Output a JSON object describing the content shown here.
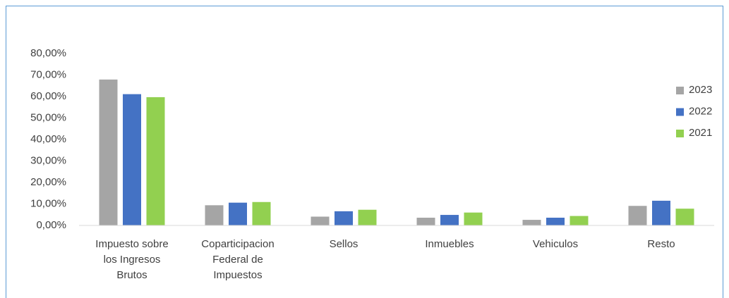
{
  "chart_data": {
    "type": "bar",
    "categories": [
      "Impuesto sobre los Ingresos Brutos",
      "Coparticipacion Federal de Impuestos",
      "Sellos",
      "Inmuebles",
      "Vehiculos",
      "Resto"
    ],
    "series": [
      {
        "name": "2023",
        "color": "#a5a5a5",
        "values": [
          67.9,
          9.4,
          4.1,
          3.6,
          2.6,
          9.1
        ]
      },
      {
        "name": "2022",
        "color": "#4472c4",
        "values": [
          61.1,
          10.6,
          6.6,
          4.9,
          3.6,
          11.5
        ]
      },
      {
        "name": "2021",
        "color": "#92d050",
        "values": [
          59.7,
          10.9,
          7.3,
          6.0,
          4.4,
          7.8
        ]
      }
    ],
    "ylim": [
      0,
      80
    ],
    "yticks": [
      {
        "value": 0,
        "label": "0,00%"
      },
      {
        "value": 10,
        "label": "10,00%"
      },
      {
        "value": 20,
        "label": "20,00%"
      },
      {
        "value": 30,
        "label": "30,00%"
      },
      {
        "value": 40,
        "label": "40,00%"
      },
      {
        "value": 50,
        "label": "50,00%"
      },
      {
        "value": 60,
        "label": "60,00%"
      },
      {
        "value": 70,
        "label": "70,00%"
      },
      {
        "value": 80,
        "label": "80,00%"
      }
    ],
    "grid": false,
    "legend": "right"
  }
}
